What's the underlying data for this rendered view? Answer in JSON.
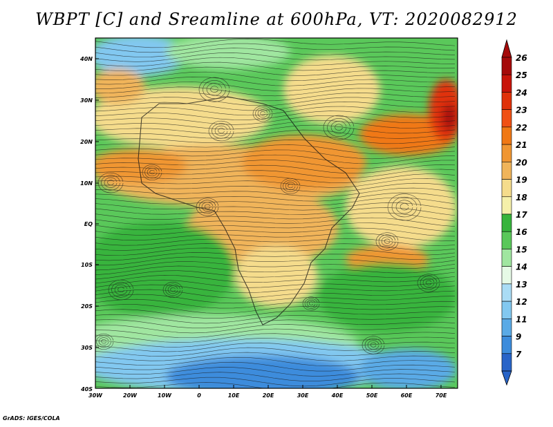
{
  "title": "WBPT [C] and Sreamline at 600hPa, VT: 2020082912",
  "credit": "GrADS: IGES/COLA",
  "lat_labels": [
    "40N",
    "30N",
    "20N",
    "10N",
    "EQ",
    "10S",
    "20S",
    "30S",
    "40S"
  ],
  "lon_labels": [
    "30W",
    "20W",
    "10W",
    "0",
    "10E",
    "20E",
    "30E",
    "40E",
    "50E",
    "60E",
    "70E"
  ],
  "colorbar": {
    "labels": [
      "26",
      "25",
      "24",
      "23",
      "22",
      "21",
      "20",
      "19",
      "18",
      "17",
      "16",
      "15",
      "14",
      "13",
      "12",
      "11",
      "9",
      "7"
    ],
    "colors": [
      "#a50a0a",
      "#c8140a",
      "#e0320a",
      "#f05014",
      "#f07814",
      "#f09632",
      "#f0b45a",
      "#f5dc8c",
      "#f5f0aa",
      "#37b43c",
      "#5ac85a",
      "#a0e6a0",
      "#e6fae6",
      "#aadcf5",
      "#82c8f0",
      "#5aaae6",
      "#3c8cdc",
      "#2864c8"
    ]
  },
  "map_regions": [
    {
      "name": "south-cold-band",
      "color": "#5aaae6"
    },
    {
      "name": "southern-green-band",
      "color": "#37b43c"
    },
    {
      "name": "tropical-warm-belt",
      "color": "#f0b45a"
    },
    {
      "name": "northern-green",
      "color": "#5ac85a"
    },
    {
      "name": "arabia-hotspot",
      "color": "#f05014"
    }
  ]
}
